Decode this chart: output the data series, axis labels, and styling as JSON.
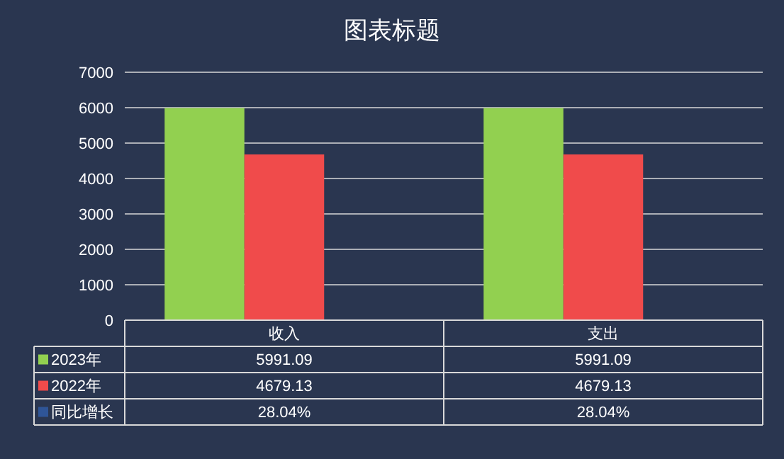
{
  "chart_data": {
    "type": "bar",
    "title": "图表标题",
    "categories": [
      "收入",
      "支出"
    ],
    "series": [
      {
        "name": "2023年",
        "color": "#92d050",
        "values": [
          5991.09,
          5991.09
        ],
        "value_labels": [
          "5991.09",
          "5991.09"
        ]
      },
      {
        "name": "2022年",
        "color": "#f04b4b",
        "values": [
          4679.13,
          4679.13
        ],
        "value_labels": [
          "4679.13",
          "4679.13"
        ]
      },
      {
        "name": "同比增长",
        "color": "#2f5597",
        "values": [
          0.2804,
          0.2804
        ],
        "value_labels": [
          "28.04%",
          "28.04%"
        ]
      }
    ],
    "ylim": [
      0,
      7000
    ],
    "yticks": [
      0,
      1000,
      2000,
      3000,
      4000,
      5000,
      6000,
      7000
    ],
    "grid": "y",
    "legend": "bottom"
  }
}
